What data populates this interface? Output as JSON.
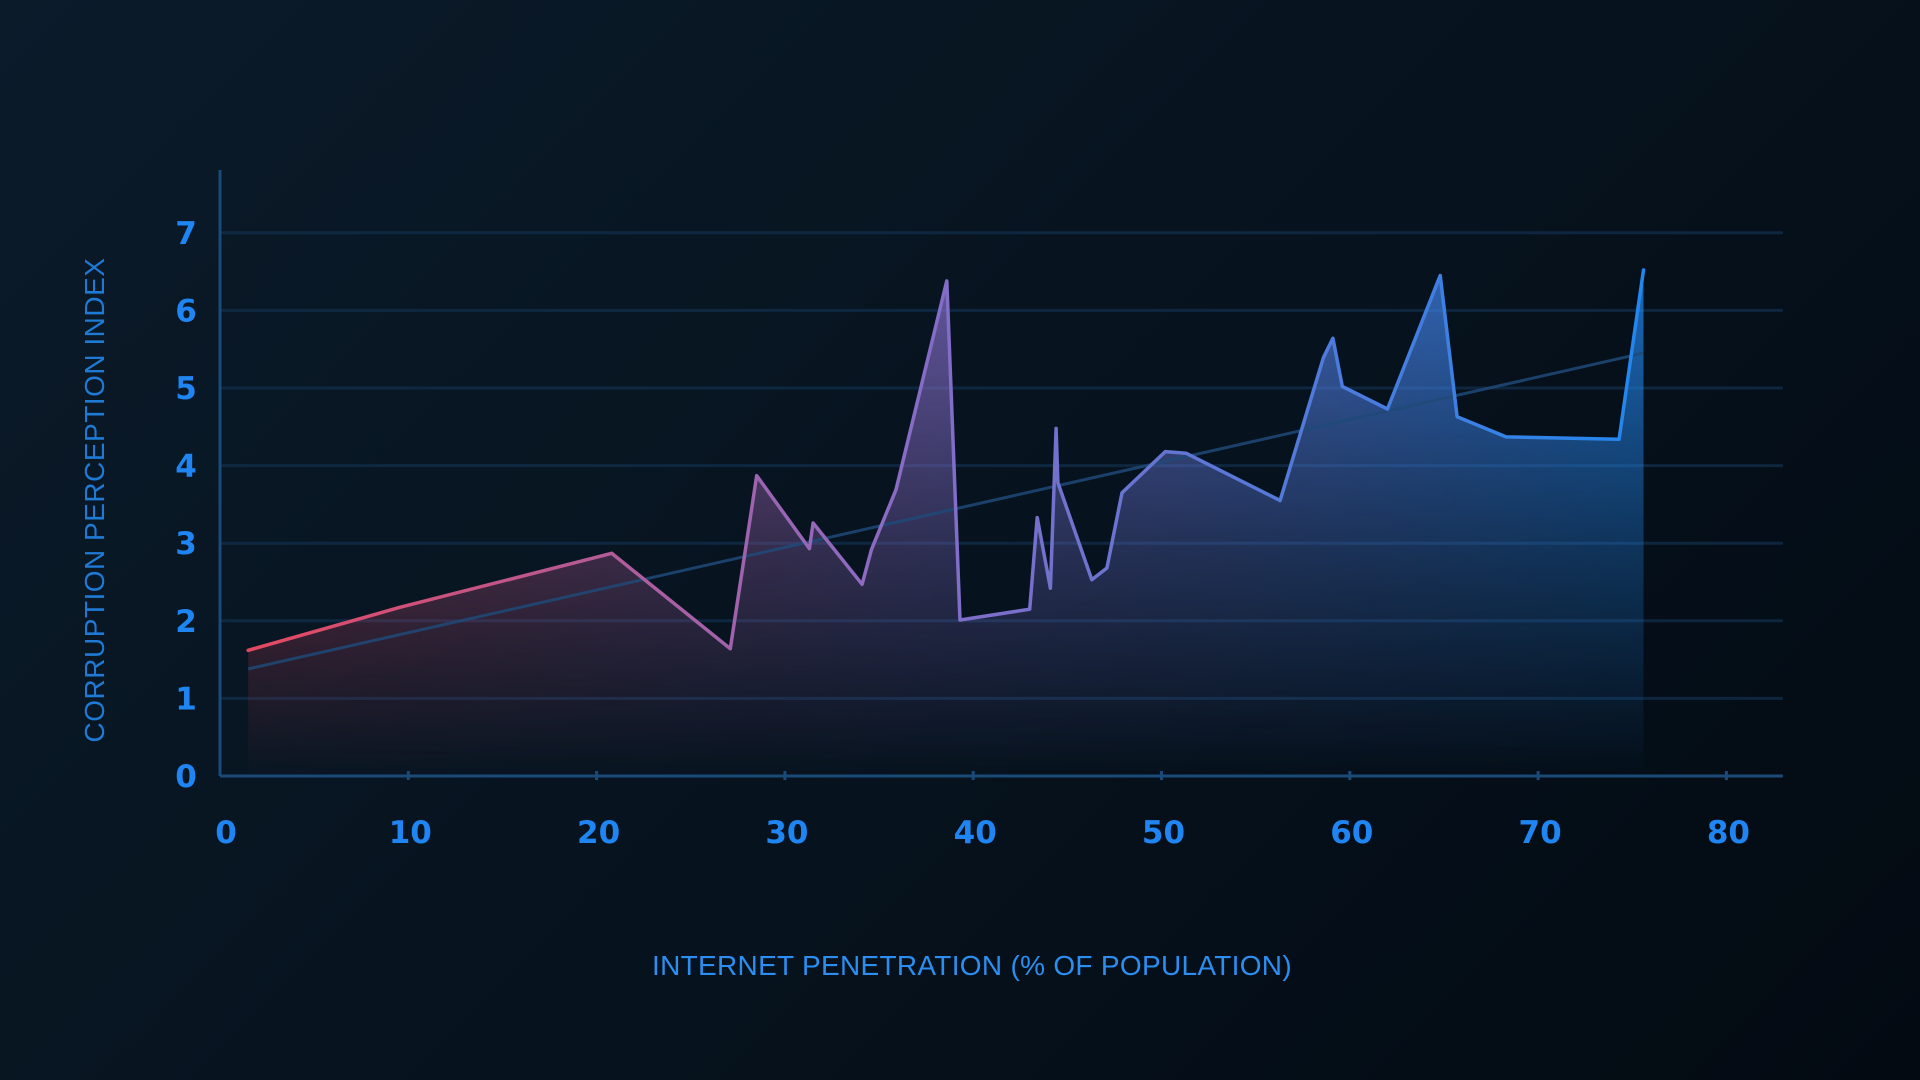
{
  "chart_data": {
    "type": "area",
    "title": "",
    "xlabel": "INTERNET PENETRATION (% OF POPULATION)",
    "ylabel": "CORRUPTION PERCEPTION INDEX",
    "xlim": [
      0,
      83
    ],
    "ylim": [
      0,
      7.7
    ],
    "xticks": [
      0,
      10,
      20,
      30,
      40,
      50,
      60,
      70,
      80
    ],
    "xtick_labels": [
      "0",
      "10",
      "20",
      "30",
      "40",
      "50",
      "60",
      "70",
      "80"
    ],
    "yticks": [
      0,
      1,
      2,
      3,
      4,
      5,
      6,
      7
    ],
    "ytick_labels": [
      "0",
      "1",
      "2",
      "3",
      "4",
      "5",
      "6",
      "7"
    ],
    "grid": "horizontal",
    "colors": {
      "low": "#e8475f",
      "mid": "#8a6bc4",
      "high": "#1e88f0",
      "trend": "#1f4a78",
      "axis": "#1b4a78",
      "grid": "#12304e"
    },
    "series": [
      {
        "x": [
          1.5,
          9.5,
          20.8,
          27.1,
          28.5,
          31.3,
          31.5,
          34.1,
          34.6,
          35.9,
          38.6,
          39.3,
          43.0,
          43.4,
          44.1,
          44.4,
          44.5,
          46.3,
          47.1,
          47.9,
          50.2,
          51.3,
          56.3,
          58.6,
          59.1,
          59.6,
          62.0,
          64.8,
          65.7,
          68.3,
          74.3,
          75.6
        ],
        "y": [
          1.62,
          2.17,
          2.87,
          1.64,
          3.87,
          2.93,
          3.26,
          2.47,
          2.92,
          3.69,
          6.38,
          2.01,
          2.15,
          3.33,
          2.42,
          4.48,
          3.78,
          2.53,
          2.68,
          3.65,
          4.18,
          4.16,
          3.55,
          5.39,
          5.64,
          5.02,
          4.73,
          6.45,
          4.63,
          4.37,
          4.34,
          6.52
        ]
      }
    ],
    "trendline": {
      "x": [
        1.5,
        75.6
      ],
      "y": [
        1.38,
        5.45
      ]
    }
  }
}
